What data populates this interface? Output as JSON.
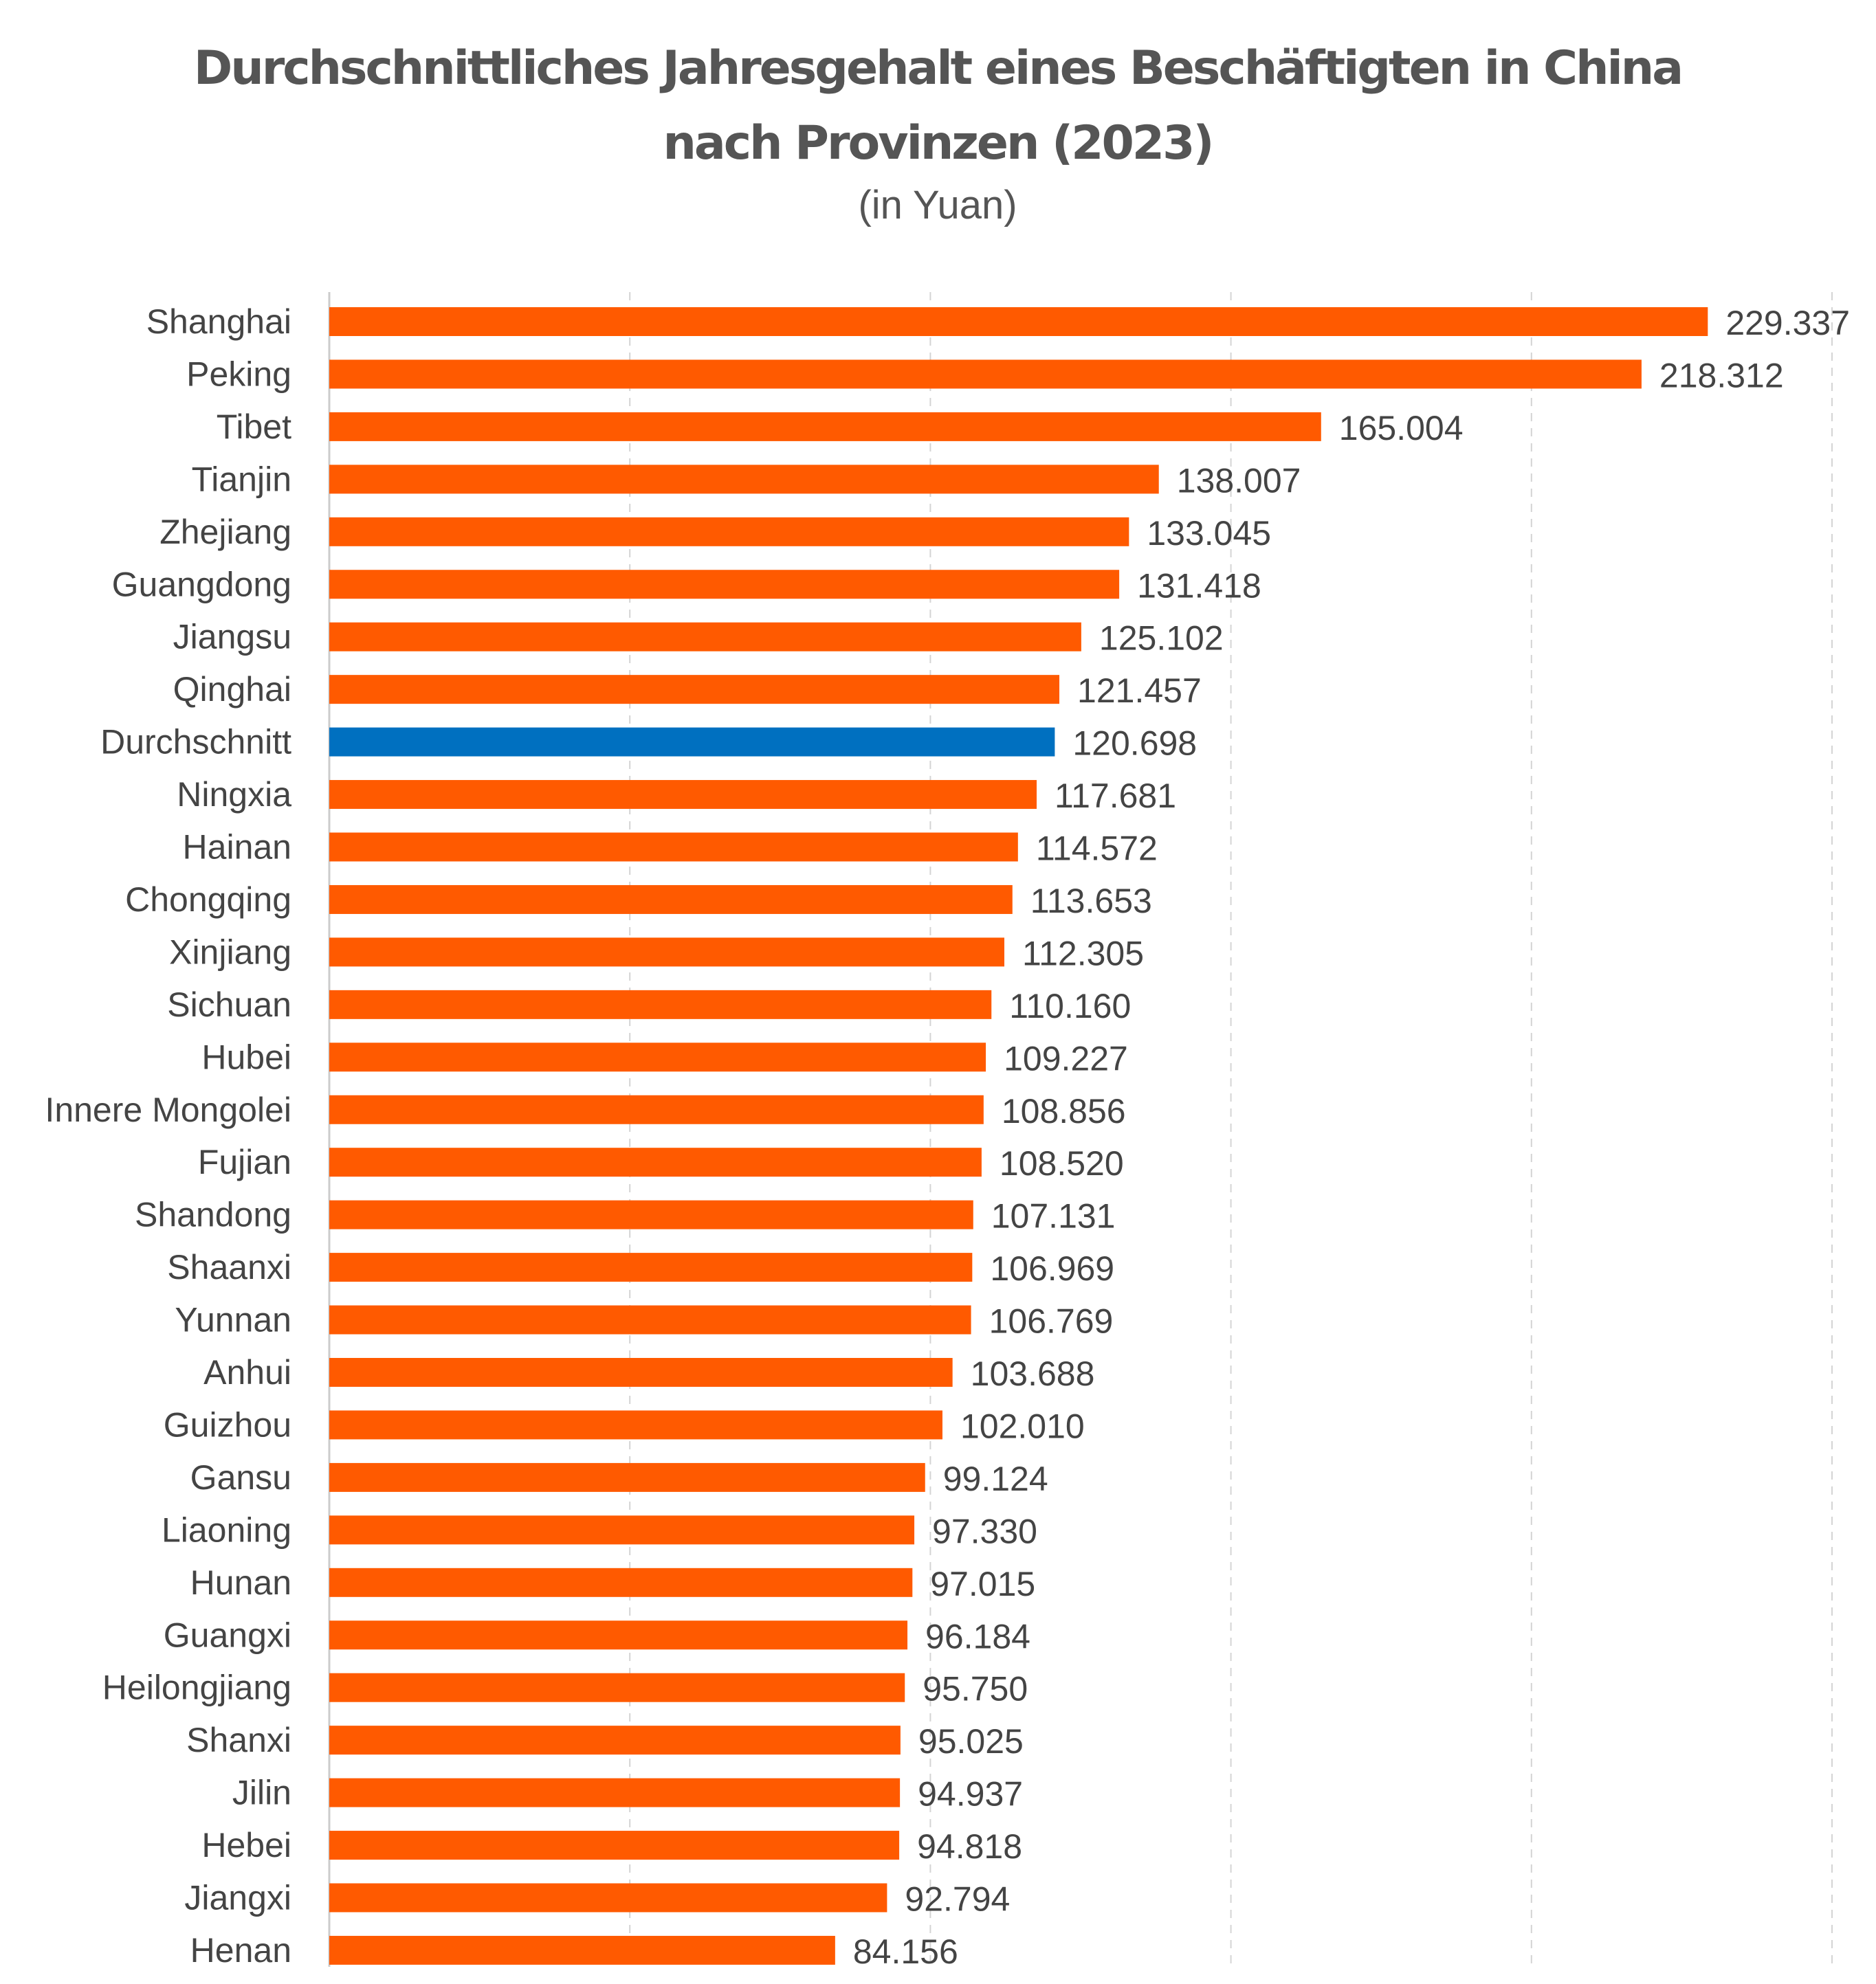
{
  "chart_data": {
    "type": "bar",
    "orientation": "horizontal",
    "title_line1": "Durchschnittliches Jahresgehalt eines Beschäftigten in China",
    "title_line2": "nach Provinzen (2023)",
    "subtitle": "(in Yuan)",
    "xlim": [
      0,
      250000
    ],
    "grid": "vertical dashed",
    "legend": "none",
    "colors": {
      "default": "#ff5a00",
      "highlight": "#0070c0",
      "grid": "#d4d4d4",
      "axis": "#cccccc"
    },
    "categories": [
      "Shanghai",
      "Peking",
      "Tibet",
      "Tianjin",
      "Zhejiang",
      "Guangdong",
      "Jiangsu",
      "Qinghai",
      "Durchschnitt",
      "Ningxia",
      "Hainan",
      "Chongqing",
      "Xinjiang",
      "Sichuan",
      "Hubei",
      "Innere Mongolei",
      "Fujian",
      "Shandong",
      "Shaanxi",
      "Yunnan",
      "Anhui",
      "Guizhou",
      "Gansu",
      "Liaoning",
      "Hunan",
      "Guangxi",
      "Heilongjiang",
      "Shanxi",
      "Jilin",
      "Hebei",
      "Jiangxi",
      "Henan"
    ],
    "values": [
      229337,
      218312,
      165004,
      138007,
      133045,
      131418,
      125102,
      121457,
      120698,
      117681,
      114572,
      113653,
      112305,
      110160,
      109227,
      108856,
      108520,
      107131,
      106969,
      106769,
      103688,
      102010,
      99124,
      97330,
      97015,
      96184,
      95750,
      95025,
      94937,
      94818,
      92794,
      84156
    ],
    "value_labels": [
      "229.337",
      "218.312",
      "165.004",
      "138.007",
      "133.045",
      "131.418",
      "125.102",
      "121.457",
      "120.698",
      "117.681",
      "114.572",
      "113.653",
      "112.305",
      "110.160",
      "109.227",
      "108.856",
      "108.520",
      "107.131",
      "106.969",
      "106.769",
      "103.688",
      "102.010",
      "99.124",
      "97.330",
      "97.015",
      "96.184",
      "95.750",
      "95.025",
      "94.937",
      "94.818",
      "92.794",
      "84.156"
    ],
    "highlight_category": "Durchschnitt"
  }
}
